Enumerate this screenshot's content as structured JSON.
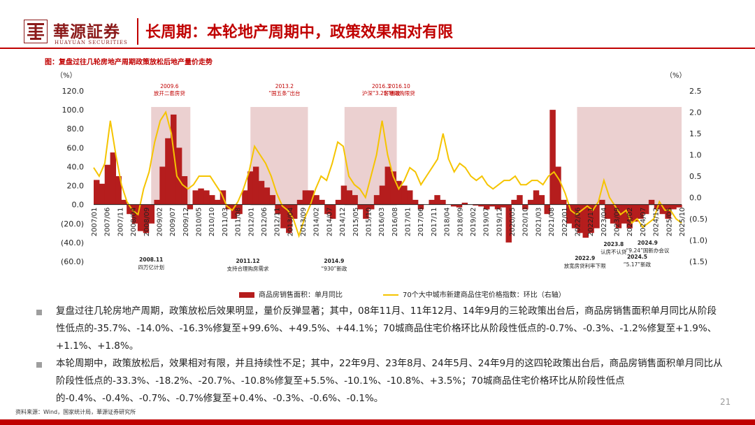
{
  "header": {
    "brand_cn": "華源証券",
    "brand_en": "HUAYUAN SECURITIES",
    "title": "长周期：本轮地产周期中，政策效果相对有限"
  },
  "figure_title": "图：复盘过往几轮房地产周期政策放松后地产量价走势",
  "left_unit": "（%）",
  "right_unit": "（%）",
  "colors": {
    "brand": "#c00000",
    "bar": "#b51d1d",
    "line": "#f5c400",
    "shade": "#e8c8c8"
  },
  "chart_data": {
    "type": "bar+line",
    "x_labels": [
      "2007/01",
      "2007/06",
      "2007/11",
      "2008/04",
      "2008/09",
      "2009/02",
      "2009/07",
      "2009/12",
      "2010/05",
      "2010/10",
      "2011/03",
      "2011/08",
      "2012/01",
      "2012/06",
      "2012/11",
      "2013/04",
      "2013/09",
      "2014/02",
      "2014/07",
      "2014/12",
      "2015/05",
      "2015/10",
      "2016/03",
      "2016/08",
      "2017/01",
      "2017/06",
      "2017/11",
      "2018/04",
      "2018/09",
      "2019/02",
      "2019/07",
      "2019/12",
      "2020/05",
      "2020/10",
      "2021/03",
      "2021/08",
      "2022/01",
      "2022/06",
      "2022/11",
      "2023/04",
      "2023/09",
      "2024/02",
      "2024/07",
      "2024/12",
      "2025/05",
      "2025/10"
    ],
    "left_axis": {
      "min": -60,
      "max": 120,
      "ticks": [
        "120.0",
        "100.0",
        "80.0",
        "60.0",
        "40.0",
        "20.0",
        "0.0",
        "(20.0)",
        "(40.0)",
        "(60.0)"
      ]
    },
    "right_axis": {
      "min": -1.5,
      "max": 2.5,
      "ticks": [
        "2.5",
        "2.0",
        "1.5",
        "1.0",
        "0.5",
        "0.0",
        "(0.5)",
        "(1.0)",
        "(1.5)"
      ]
    },
    "series": [
      {
        "name": "商品房销售面积：单月同比",
        "axis": "left",
        "kind": "bar",
        "values": [
          26,
          22,
          42,
          55,
          30,
          5,
          -10,
          -20,
          -28,
          -30,
          -20,
          5,
          40,
          70,
          95,
          60,
          30,
          -5,
          15,
          17,
          15,
          10,
          5,
          15,
          -5,
          -15,
          -10,
          15,
          35,
          40,
          25,
          18,
          10,
          -10,
          -25,
          -30,
          -15,
          5,
          15,
          15,
          10,
          5,
          -10,
          -15,
          5,
          20,
          15,
          10,
          -5,
          -15,
          -5,
          10,
          20,
          40,
          35,
          25,
          20,
          15,
          5,
          -5,
          0,
          5,
          10,
          5,
          0,
          -2,
          -3,
          2,
          0,
          -1,
          -2,
          -5,
          -2,
          -5,
          -3,
          -40,
          5,
          10,
          -5,
          5,
          15,
          10,
          -10,
          100,
          40,
          5,
          -20,
          -25,
          -30,
          -35,
          -30,
          -25,
          5,
          -15,
          -20,
          -25,
          -20,
          -25,
          -18,
          -15,
          -10,
          5,
          -5,
          -10,
          -15,
          -5,
          -3
        ]
      },
      {
        "name": "70个大中城市新建商品住宅价格指数：环比（右轴）",
        "axis": "right",
        "kind": "line",
        "values": [
          0.7,
          0.5,
          0.8,
          1.8,
          1.0,
          0.3,
          -0.1,
          -0.3,
          -0.4,
          0.2,
          0.6,
          1.3,
          1.8,
          2.0,
          1.5,
          0.5,
          0.3,
          0.2,
          0.3,
          0.5,
          0.5,
          0.5,
          0.3,
          0.1,
          -0.2,
          -0.3,
          -0.1,
          0.2,
          0.6,
          1.2,
          1.0,
          0.8,
          0.5,
          0.1,
          -0.2,
          -0.3,
          -0.5,
          -0.9,
          -0.5,
          -0.2,
          0.2,
          0.5,
          0.4,
          0.8,
          1.3,
          1.2,
          0.5,
          0.3,
          0.2,
          0.0,
          0.5,
          1.0,
          1.8,
          1.0,
          0.5,
          0.2,
          0.4,
          0.7,
          0.6,
          0.3,
          0.5,
          0.7,
          0.9,
          1.5,
          0.9,
          0.6,
          0.8,
          0.7,
          0.5,
          0.4,
          0.5,
          0.3,
          0.2,
          0.3,
          0.4,
          0.4,
          0.5,
          0.3,
          0.3,
          0.4,
          0.4,
          0.3,
          0.5,
          0.6,
          0.4,
          0.1,
          -0.3,
          -0.4,
          -0.3,
          -0.2,
          -0.3,
          -0.1,
          0.4,
          0.0,
          -0.2,
          -0.4,
          -0.3,
          -0.6,
          -0.5,
          -0.7,
          -0.6,
          -0.5,
          -0.1,
          -0.3,
          -0.3,
          -0.5,
          -0.6
        ]
      },
      {
        "name": "政策放松区间",
        "kind": "shade",
        "ranges": [
          [
            "2008/11",
            "2010/02"
          ],
          [
            "2012/01",
            "2013/11"
          ],
          [
            "2015/01",
            "2016/09"
          ],
          [
            "2022/06",
            "2025/10"
          ]
        ]
      }
    ],
    "annotations_top": [
      {
        "label": "2009.6",
        "text": "放开二套房贷",
        "x": "2009/06"
      },
      {
        "label": "2013.2",
        "text": "“国五条”出台",
        "x": "2013/02"
      },
      {
        "label": "2016.3",
        "text": "沪深“3.25”新政",
        "x": "2016/03"
      },
      {
        "label": "2016.10",
        "text": "各地限购限贷",
        "x": "2016/10"
      }
    ],
    "annotations_bottom": [
      {
        "label": "2008.11",
        "text": "四万亿计划",
        "x": "2008/11"
      },
      {
        "label": "2011.12",
        "text": "支持合理购房需求",
        "x": "2011/12"
      },
      {
        "label": "2014.9",
        "text": "“930”新政",
        "x": "2014/09"
      },
      {
        "label": "2022.9",
        "text": "放宽房贷利率下限",
        "x": "2022/09"
      },
      {
        "label": "2023.8",
        "text": "认房不认贷",
        "x": "2023/08"
      },
      {
        "label": "2024.9",
        "text": "“9.24”国新办会议",
        "x": "2024/09"
      },
      {
        "label": "2024.5",
        "text": "“5.17”新政",
        "x": "2024/05"
      }
    ]
  },
  "legend": {
    "bar_label": "商品房销售面积：单月同比",
    "line_label": "70个大中城市新建商品住宅价格指数：环比（右轴）"
  },
  "paragraphs": [
    "复盘过往几轮房地产周期，政策放松后效果明显，量价反弹显著；其中，08年11月、11年12月、14年9月的三轮政策出台后，商品房销售面积单月同比从阶段性低点的-35.7%、-14.0%、-16.3%修复至+99.6%、+49.5%、+44.1%；70城商品住宅价格环比从阶段性低点的-0.7%、-0.3%、-1.2%修复至+1.9%、+1.1%、+1.8%。",
    "本轮周期中，政策放松后，效果相对有限，并且持续性不足；其中，22年9月、23年8月、24年5月、24年9月的这四轮政策出台后，商品房销售面积单月同比从阶段性低点的-33.3%、-18.2%、-20.7%、-10.8%修复至+5.5%、-10.1%、-10.8%、+3.5%；70城商品住宅价格环比从阶段性低点的-0.4%、-0.4%、-0.7%、-0.7%修复至+0.4%、-0.3%、-0.6%、-0.1%。"
  ],
  "page_number": "21",
  "source": "资料来源：Wind，国家统计局，華源证券研究所"
}
